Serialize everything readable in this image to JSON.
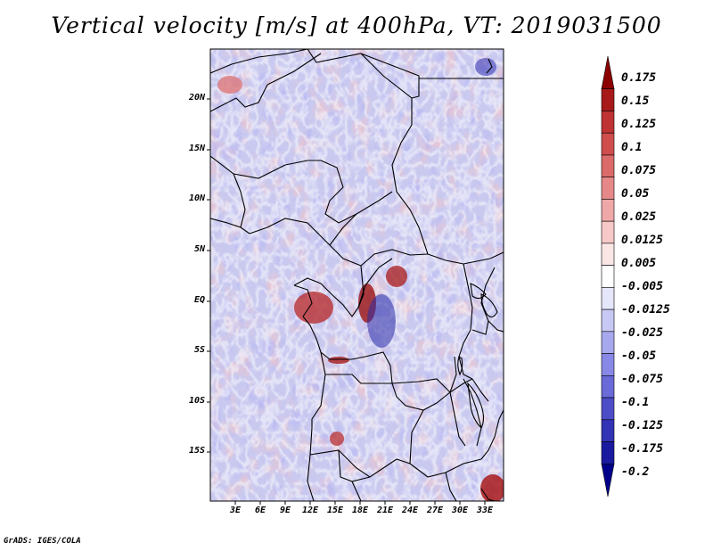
{
  "title": "Vertical velocity [m/s] at 400hPa, VT: 2019031500",
  "credit": "GrADS: IGES/COLA",
  "lat_labels": [
    "20N",
    "15N",
    "10N",
    "5N",
    "EQ",
    "5S",
    "10S",
    "15S"
  ],
  "lon_labels": [
    "3E",
    "6E",
    "9E",
    "12E",
    "15E",
    "18E",
    "21E",
    "24E",
    "27E",
    "30E",
    "33E"
  ],
  "colorbar": {
    "labels": [
      "0.175",
      "0.15",
      "0.125",
      "0.1",
      "0.075",
      "0.05",
      "0.025",
      "0.0125",
      "0.005",
      "-0.005",
      "-0.0125",
      "-0.025",
      "-0.05",
      "-0.075",
      "-0.1",
      "-0.125",
      "-0.175",
      "-0.2"
    ],
    "colors": [
      "#8b0000",
      "#a81a1a",
      "#bf3333",
      "#cf4d4d",
      "#db6a6a",
      "#e68888",
      "#efa8a8",
      "#f6c8c8",
      "#fbe6e6",
      "#ffffff",
      "#e6e6fb",
      "#c8c8f4",
      "#a8a8ee",
      "#8888e6",
      "#6a6ad9",
      "#4d4dc8",
      "#3333b5",
      "#1a1aa0",
      "#00008b"
    ]
  }
}
